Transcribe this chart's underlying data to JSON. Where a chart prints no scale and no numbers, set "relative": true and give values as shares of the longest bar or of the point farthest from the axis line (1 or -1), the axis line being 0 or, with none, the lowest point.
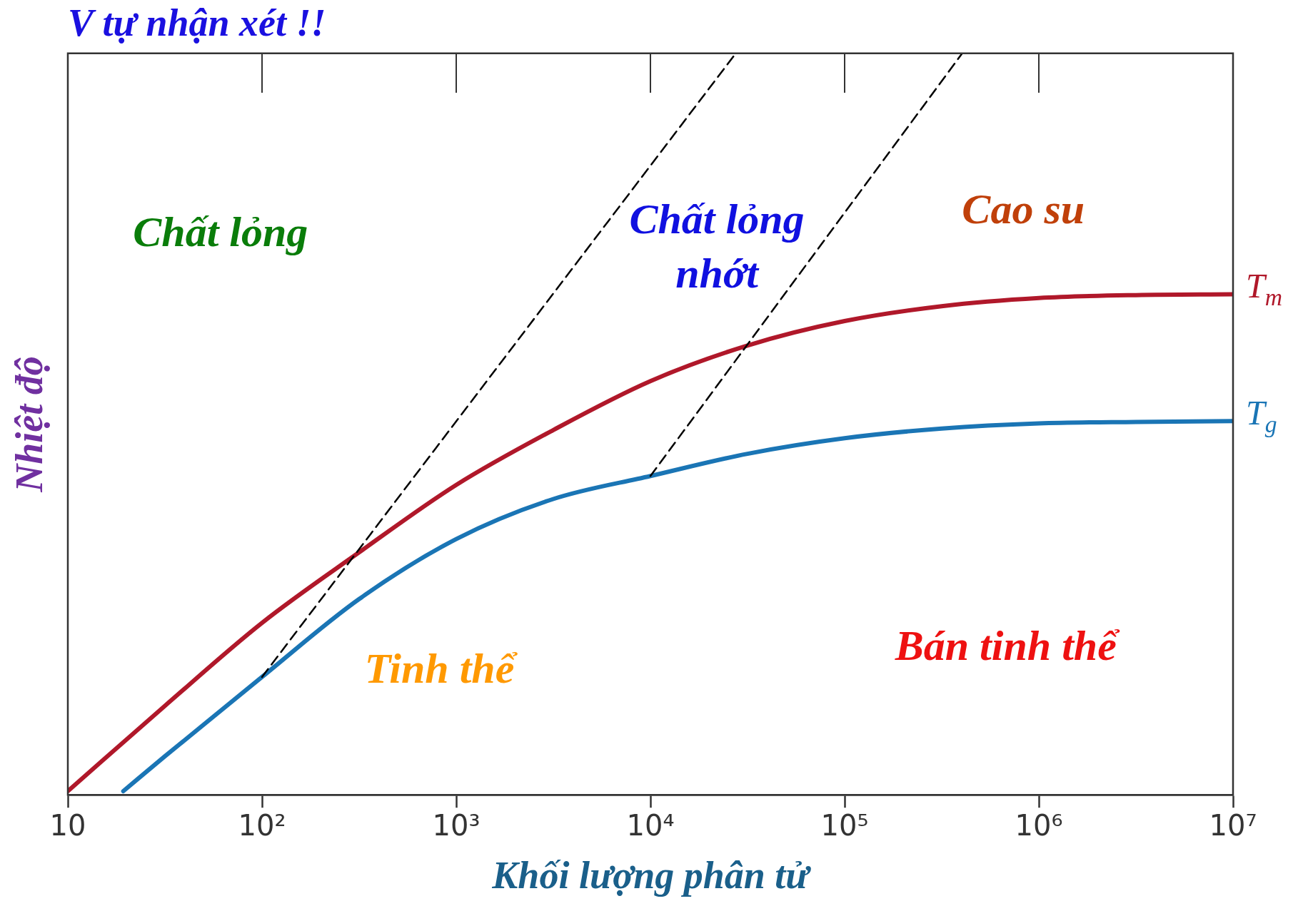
{
  "chart_data": {
    "type": "line",
    "title": "V tự nhận xét !!",
    "xlabel": "Khối lượng phân tử",
    "ylabel": "Nhiệt độ",
    "relative": true,
    "log": "x",
    "grid": false,
    "legend": false,
    "marker": "none",
    "xlim": [
      10,
      10000000
    ],
    "xticks": [
      10,
      {
        "value": 100,
        "label": "10²"
      },
      {
        "value": 1000,
        "label": "10³"
      },
      {
        "value": 10000,
        "label": "10⁴"
      },
      {
        "value": 100000,
        "label": "10⁵"
      },
      {
        "value": 1000000,
        "label": "10⁶"
      },
      {
        "value": 10000000,
        "label": "10⁷"
      }
    ],
    "series": [
      {
        "name": "T$_{m}$",
        "color": "#b0182a",
        "line_style": "solid",
        "x": [
          10,
          31.6,
          100,
          316,
          1000,
          3160,
          10000,
          31600,
          100000,
          316000,
          1000000,
          3160000,
          10000000
        ],
        "values": [
          0.005,
          0.12,
          0.232,
          0.327,
          0.418,
          0.492,
          0.558,
          0.606,
          0.639,
          0.659,
          0.67,
          0.674,
          0.675
        ]
      },
      {
        "name": "T$_{g}$",
        "color": "#1a75b5",
        "line_style": "solid",
        "x": [
          19.3,
          31.6,
          100,
          316,
          1000,
          3160,
          10000,
          31600,
          100000,
          316000,
          1000000,
          3160000,
          10000000
        ],
        "values": [
          0.005,
          0.052,
          0.159,
          0.264,
          0.345,
          0.399,
          0.43,
          0.46,
          0.481,
          0.494,
          0.501,
          0.503,
          0.504
        ]
      },
      {
        "color": "#000000",
        "line_style": "dashed",
        "x": [
          100,
          27500
        ],
        "values": [
          0.159,
          1
        ]
      },
      {
        "color": "#000000",
        "line_style": "dashed",
        "x": [
          10000,
          403000
        ],
        "values": [
          0.43,
          1
        ]
      }
    ],
    "annotations": [
      "Chất lỏng",
      "Chất lỏng\nnhớt",
      "Cao su",
      "Tinh thể",
      "Bán tinh thể"
    ]
  }
}
